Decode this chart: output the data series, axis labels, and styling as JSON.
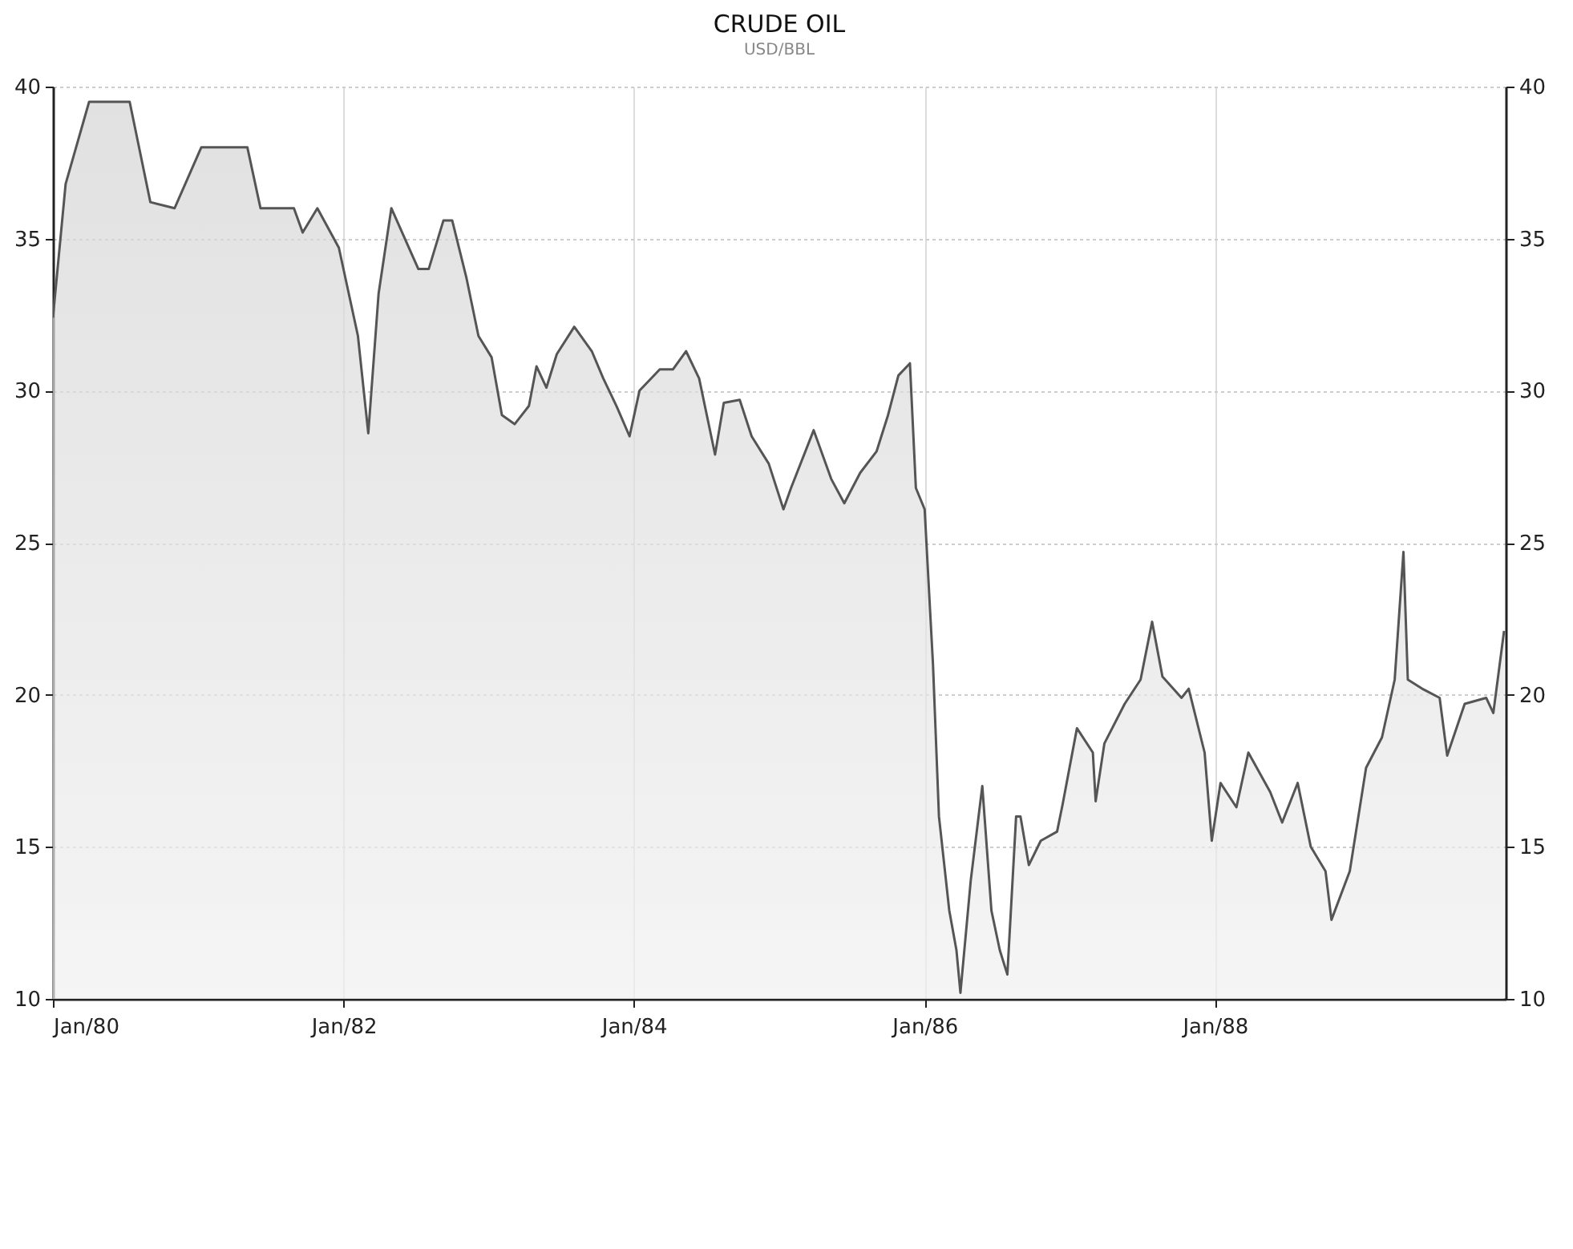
{
  "chart_data": {
    "type": "area",
    "title": "CRUDE OIL",
    "subtitle": "USD/BBL",
    "x": [
      "1980-01-01",
      "1980-02-02",
      "1980-04-01",
      "1980-07-12",
      "1980-09-02",
      "1980-11-02",
      "1981-01-08",
      "1981-05-04",
      "1981-06-06",
      "1981-08-29",
      "1981-09-20",
      "1981-10-27",
      "1981-12-20",
      "1982-02-06",
      "1982-03-04",
      "1982-03-30",
      "1982-05-01",
      "1982-07-08",
      "1982-08-03",
      "1982-09-09",
      "1982-10-01",
      "1982-11-06",
      "1982-12-06",
      "1983-01-08",
      "1983-02-03",
      "1983-03-07",
      "1983-04-12",
      "1983-05-01",
      "1983-05-26",
      "1983-06-21",
      "1983-08-04",
      "1983-09-17",
      "1983-10-16",
      "1983-11-18",
      "1983-12-21",
      "1984-01-15",
      "1984-03-06",
      "1984-04-08",
      "1984-05-11",
      "1984-06-13",
      "1984-07-23",
      "1984-08-14",
      "1984-09-23",
      "1984-10-23",
      "1984-12-05",
      "1985-01-11",
      "1985-01-30",
      "1985-03-28",
      "1985-05-11",
      "1985-06-13",
      "1985-07-23",
      "1985-09-02",
      "1985-10-01",
      "1985-10-27",
      "1985-11-25",
      "1985-12-10",
      "1986-01-01",
      "1986-01-22",
      "1986-02-06",
      "1986-03-04",
      "1986-03-22",
      "1986-04-01",
      "1986-04-27",
      "1986-05-26",
      "1986-06-18",
      "1986-07-09",
      "1986-07-28",
      "1986-08-19",
      "1986-08-30",
      "1986-09-20",
      "1986-10-20",
      "1986-11-30",
      "1986-12-14",
      "1987-01-19",
      "1987-02-28",
      "1987-03-07",
      "1987-03-29",
      "1987-05-19",
      "1987-06-28",
      "1987-07-27",
      "1987-08-22",
      "1987-10-09",
      "1987-10-27",
      "1987-12-06",
      "1987-12-24",
      "1988-01-15",
      "1988-02-24",
      "1988-03-25",
      "1988-05-19",
      "1988-06-18",
      "1988-07-27",
      "1988-08-29",
      "1988-10-05",
      "1988-10-20",
      "1988-12-05",
      "1989-01-15",
      "1989-02-24",
      "1989-03-28",
      "1989-04-19",
      "1989-04-30",
      "1989-06-05",
      "1989-07-19",
      "1989-08-07",
      "1989-09-20",
      "1989-11-13",
      "1989-12-01",
      "1989-12-28"
    ],
    "series": [
      {
        "color": "#555555",
        "values": [
          32.4,
          36.8,
          39.5,
          39.5,
          36.2,
          36,
          38,
          38,
          36,
          36,
          35.2,
          36,
          34.7,
          31.8,
          28.6,
          33.2,
          36,
          34,
          34,
          35.6,
          35.6,
          33.7,
          31.8,
          31.1,
          29.2,
          28.9,
          29.5,
          30.8,
          30.1,
          31.2,
          32.1,
          31.3,
          30.4,
          29.5,
          28.5,
          30,
          30.7,
          30.7,
          31.3,
          30.4,
          27.9,
          29.6,
          29.7,
          28.5,
          27.6,
          26.1,
          26.8,
          28.7,
          27.1,
          26.3,
          27.3,
          28,
          29.2,
          30.5,
          30.9,
          26.8,
          26.1,
          21,
          16,
          12.9,
          11.6,
          10.2,
          13.9,
          17,
          12.9,
          11.6,
          10.8,
          16,
          16,
          14.4,
          15.2,
          15.5,
          16.4,
          18.9,
          18.1,
          16.5,
          18.4,
          19.7,
          20.5,
          22.4,
          20.6,
          19.9,
          20.2,
          18.1,
          15.2,
          17.1,
          16.3,
          18.1,
          16.8,
          15.8,
          17.1,
          15,
          14.2,
          12.6,
          14.2,
          17.6,
          18.6,
          20.5,
          24.7,
          20.5,
          20.2,
          19.9,
          18,
          19.7,
          19.9,
          19.4,
          22.1
        ]
      }
    ],
    "xlim": [
      "1980-01-01",
      "1990-01-01"
    ],
    "xticks": [
      {
        "value": "1980-01",
        "label": "Jan/80"
      },
      {
        "value": "1982-01",
        "label": "Jan/82"
      },
      {
        "value": "1984-01",
        "label": "Jan/84"
      },
      {
        "value": "1986-01",
        "label": "Jan/86"
      },
      {
        "value": "1988-01",
        "label": "Jan/88"
      }
    ],
    "ylim": [
      10,
      40
    ],
    "yticks": [
      10,
      15,
      20,
      25,
      30,
      35,
      40
    ],
    "y2lim": [
      10,
      40
    ],
    "y2ticks": [
      10,
      15,
      20,
      25,
      30,
      35,
      40
    ],
    "grid": true
  }
}
